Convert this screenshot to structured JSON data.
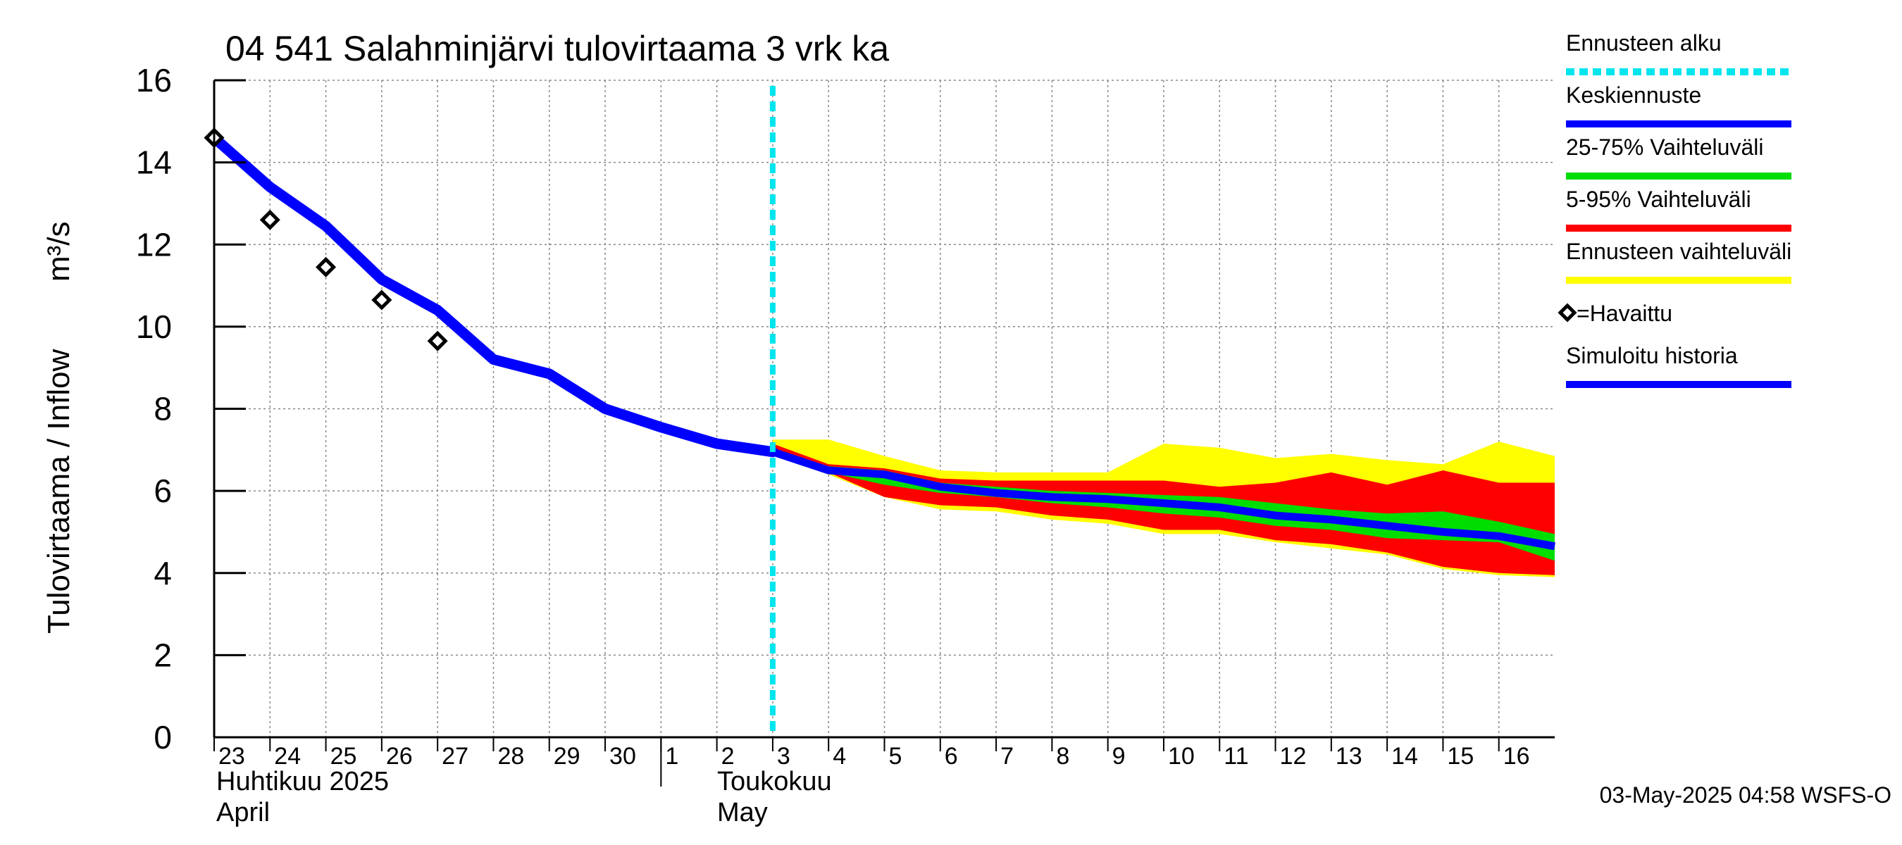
{
  "chart_data": {
    "type": "line",
    "title": "04 541 Salahminjärvi tulovirtaama 3 vrk ka",
    "ylabel": "Tulovirtaama / Inflow",
    "yunit": "m³/s",
    "ylim": [
      0,
      16
    ],
    "yticks": [
      0,
      2,
      4,
      6,
      8,
      10,
      12,
      14,
      16
    ],
    "xlim": [
      0,
      24
    ],
    "grid": true,
    "day_labels": [
      {
        "x": 0,
        "label": "23"
      },
      {
        "x": 1,
        "label": "24"
      },
      {
        "x": 2,
        "label": "25"
      },
      {
        "x": 3,
        "label": "26"
      },
      {
        "x": 4,
        "label": "27"
      },
      {
        "x": 5,
        "label": "28"
      },
      {
        "x": 6,
        "label": "29"
      },
      {
        "x": 7,
        "label": "30"
      },
      {
        "x": 8,
        "label": "1"
      },
      {
        "x": 9,
        "label": "2"
      },
      {
        "x": 10,
        "label": "3"
      },
      {
        "x": 11,
        "label": "4"
      },
      {
        "x": 12,
        "label": "5"
      },
      {
        "x": 13,
        "label": "6"
      },
      {
        "x": 14,
        "label": "7"
      },
      {
        "x": 15,
        "label": "8"
      },
      {
        "x": 16,
        "label": "9"
      },
      {
        "x": 17,
        "label": "10"
      },
      {
        "x": 18,
        "label": "11"
      },
      {
        "x": 19,
        "label": "12"
      },
      {
        "x": 20,
        "label": "13"
      },
      {
        "x": 21,
        "label": "14"
      },
      {
        "x": 22,
        "label": "15"
      },
      {
        "x": 23,
        "label": "16"
      }
    ],
    "month_labels": {
      "april_fi": "Huhtikuu  2025",
      "april_en": "April",
      "may_fi": "Toukokuu",
      "may_en": "May"
    },
    "month_boundary_x": 8,
    "forecast_start_x": 10,
    "observed": {
      "name": "=Havaittu",
      "x": [
        0,
        1,
        2,
        3,
        4
      ],
      "y": [
        14.6,
        12.6,
        11.45,
        10.65,
        9.65
      ]
    },
    "simulated_history": {
      "name": "Simuloitu historia",
      "x": [
        0,
        1,
        2,
        3,
        4,
        5,
        6,
        7,
        8,
        9,
        10
      ],
      "y": [
        14.6,
        13.4,
        12.45,
        11.15,
        10.4,
        9.2,
        8.85,
        8.0,
        7.55,
        7.15,
        6.95
      ]
    },
    "forecast_x": [
      10,
      11,
      12,
      13,
      14,
      15,
      16,
      17,
      18,
      19,
      20,
      21,
      22,
      23,
      24
    ],
    "forecast_range": {
      "name": "Ennusteen vaihteluväli",
      "upper": [
        7.25,
        7.25,
        6.85,
        6.5,
        6.45,
        6.45,
        6.45,
        7.15,
        7.05,
        6.8,
        6.9,
        6.75,
        6.65,
        7.2,
        6.85
      ],
      "lower": [
        6.95,
        6.4,
        5.85,
        5.55,
        5.5,
        5.3,
        5.2,
        4.95,
        4.95,
        4.75,
        4.6,
        4.45,
        4.1,
        3.95,
        3.9
      ]
    },
    "band_5_95": {
      "name": "5-95% Vaihteluväli",
      "upper": [
        7.15,
        6.65,
        6.55,
        6.3,
        6.25,
        6.25,
        6.25,
        6.25,
        6.1,
        6.2,
        6.45,
        6.15,
        6.5,
        6.2,
        6.2
      ],
      "lower": [
        6.95,
        6.45,
        5.85,
        5.65,
        5.6,
        5.4,
        5.3,
        5.05,
        5.05,
        4.8,
        4.7,
        4.5,
        4.15,
        4.0,
        3.95
      ]
    },
    "band_25_75": {
      "name": "25-75% Vaihteluväli",
      "upper": [
        7.0,
        6.6,
        6.5,
        6.2,
        6.1,
        6.0,
        5.95,
        5.9,
        5.85,
        5.7,
        5.55,
        5.45,
        5.5,
        5.25,
        4.95
      ],
      "lower": [
        6.9,
        6.45,
        6.15,
        5.95,
        5.85,
        5.7,
        5.6,
        5.45,
        5.35,
        5.15,
        5.05,
        4.85,
        4.8,
        4.75,
        4.3
      ]
    },
    "median_forecast": {
      "name": "Keskiennuste",
      "y": [
        6.95,
        6.5,
        6.4,
        6.1,
        5.95,
        5.85,
        5.8,
        5.7,
        5.6,
        5.4,
        5.3,
        5.15,
        5.0,
        4.9,
        4.65
      ]
    },
    "legend": {
      "placement": "right",
      "items": [
        {
          "key": "forecast_start",
          "label": "Ennusteen alku",
          "color": "#00e5ee",
          "style": "dashed"
        },
        {
          "key": "median",
          "label": "Keskiennuste",
          "color": "#0000ff",
          "style": "line"
        },
        {
          "key": "band_25_75",
          "label": "25-75% Vaihteluväli",
          "color": "#00dd00",
          "style": "line"
        },
        {
          "key": "band_5_95",
          "label": "5-95% Vaihteluväli",
          "color": "#ff0000",
          "style": "line"
        },
        {
          "key": "range",
          "label": "Ennusteen vaihteluväli",
          "color": "#ffff00",
          "style": "line"
        },
        {
          "key": "observed",
          "label": "=Havaittu",
          "color": "#000000",
          "style": "diamond"
        },
        {
          "key": "simulated",
          "label": "Simuloitu historia",
          "color": "#0000ff",
          "style": "line"
        }
      ]
    },
    "timestamp": "03-May-2025 04:58 WSFS-O",
    "colors": {
      "range": "#ffff00",
      "band_5_95": "#ff0000",
      "band_25_75": "#00dd00",
      "median": "#0000ff",
      "history": "#0000ff",
      "forecast_start": "#00e5ee",
      "grid": "#888888"
    }
  }
}
